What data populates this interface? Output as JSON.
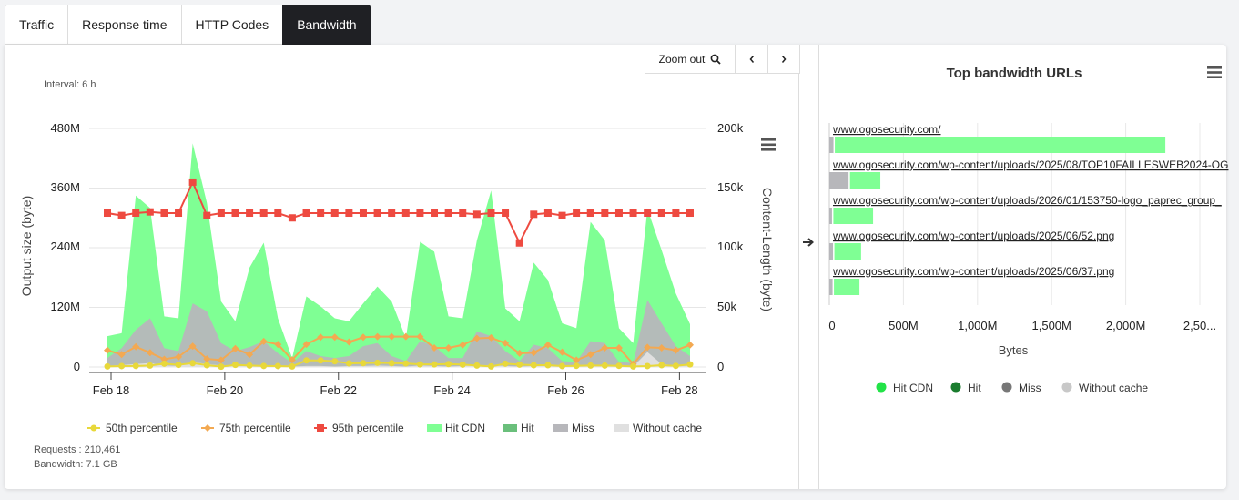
{
  "tabs": [
    {
      "label": "Traffic",
      "active": false
    },
    {
      "label": "Response time",
      "active": false
    },
    {
      "label": "HTTP Codes",
      "active": false
    },
    {
      "label": "Bandwidth",
      "active": true
    }
  ],
  "toolbar": {
    "zoom_out_label": "Zoom out",
    "prev_icon": "chevron-left-icon",
    "next_icon": "chevron-right-icon"
  },
  "left_panel": {
    "interval": "Interval: 6 h",
    "requests": "Requests : 210,461",
    "bandwidth": "Bandwidth: 7.1 GB",
    "menu_icon": "hamburger-menu-icon"
  },
  "right_panel": {
    "title": "Top bandwidth URLs",
    "menu_icon": "hamburger-menu-icon",
    "expand_icon": "arrow-right-icon"
  },
  "colors": {
    "hit_cdn": "#7fff94",
    "hit": "#6abf7b",
    "miss": "#b7b7bb",
    "without_cache": "#e0e0e0",
    "p50": "#e8d83a",
    "p75": "#f3a952",
    "p95": "#ee4a40",
    "legend_hit_cdn": "#22e347",
    "legend_hit": "#1a7c2e",
    "legend_miss": "#777777",
    "legend_without_cache": "#c8c8c8"
  },
  "chart_data": [
    {
      "type": "area",
      "title": "",
      "xlabel": "",
      "ylabel_left": "Output size (byte)",
      "ylabel_right": "Content-Length (byte)",
      "y_left_ticks": [
        "0",
        "120M",
        "240M",
        "360M",
        "480M"
      ],
      "y_left_range": [
        0,
        480
      ],
      "y_right_ticks": [
        "0",
        "50k",
        "100k",
        "150k",
        "200k"
      ],
      "y_right_range": [
        0,
        200
      ],
      "x_ticks": [
        "Feb 18",
        "Feb 20",
        "Feb 22",
        "Feb 24",
        "Feb 26",
        "Feb 28"
      ],
      "x_tick_positions": [
        0,
        8,
        16,
        24,
        32,
        40
      ],
      "legend": [
        "50th percentile",
        "75th percentile",
        "95th percentile",
        "Hit CDN",
        "Hit",
        "Miss",
        "Without cache"
      ],
      "legend_position": "bottom",
      "grid": true,
      "series": [
        {
          "name": "Hit CDN",
          "axis": "left",
          "values": [
            62,
            68,
            345,
            320,
            102,
            98,
            450,
            330,
            132,
            92,
            200,
            250,
            98,
            18,
            142,
            122,
            98,
            92,
            128,
            162,
            132,
            58,
            252,
            232,
            102,
            98,
            255,
            355,
            118,
            92,
            210,
            175,
            88,
            78,
            292,
            255,
            78,
            48,
            318,
            235,
            148,
            86
          ]
        },
        {
          "name": "Hit",
          "axis": "left",
          "values": [
            0,
            0,
            0,
            0,
            0,
            0,
            0,
            0,
            0,
            0,
            0,
            0,
            0,
            0,
            0,
            0,
            0,
            0,
            0,
            0,
            0,
            0,
            0,
            0,
            0,
            0,
            0,
            0,
            0,
            0,
            0,
            0,
            0,
            0,
            0,
            0,
            0,
            0,
            0,
            0,
            0,
            0
          ]
        },
        {
          "name": "Miss",
          "axis": "left",
          "values": [
            18,
            38,
            75,
            98,
            38,
            32,
            128,
            112,
            48,
            32,
            40,
            52,
            28,
            8,
            32,
            22,
            18,
            22,
            42,
            48,
            22,
            12,
            52,
            42,
            18,
            18,
            72,
            62,
            32,
            12,
            45,
            38,
            12,
            10,
            52,
            48,
            10,
            8,
            135,
            88,
            42,
            22
          ]
        },
        {
          "name": "Without cache",
          "axis": "left",
          "values": [
            2,
            4,
            6,
            8,
            3,
            2,
            10,
            6,
            3,
            2,
            2,
            3,
            2,
            1,
            2,
            2,
            1,
            2,
            2,
            3,
            2,
            1,
            3,
            2,
            1,
            2,
            4,
            3,
            2,
            1,
            2,
            2,
            1,
            1,
            2,
            2,
            1,
            1,
            30,
            6,
            3,
            2
          ]
        },
        {
          "name": "50th percentile",
          "axis": "right",
          "values": [
            0.5,
            0.8,
            0.9,
            1.2,
            2.8,
            1.8,
            3.2,
            1.5,
            0.3,
            1.8,
            1.2,
            0.9,
            0.8,
            0.5,
            5.5,
            5.5,
            4.8,
            3.1,
            3.2,
            3.5,
            3.2,
            3.0,
            2.2,
            2.2,
            2.5,
            2.0,
            1.2,
            0.5,
            2.8,
            2.0,
            1.5,
            1.5,
            0.8,
            1.0,
            1.2,
            1.2,
            1.0,
            0.5,
            0.8,
            1.5,
            1.0,
            2.2
          ]
        },
        {
          "name": "75th percentile",
          "axis": "right",
          "values": [
            14,
            10.5,
            17,
            12,
            6.5,
            8.5,
            17.5,
            6.8,
            5.8,
            15.5,
            10.5,
            21.5,
            19,
            6,
            19,
            25,
            25,
            21,
            25,
            25.5,
            25.5,
            25.5,
            25.5,
            16,
            16,
            18.5,
            24,
            24.5,
            20,
            11.5,
            12,
            18.5,
            12.5,
            5.8,
            10.5,
            16,
            16,
            2.5,
            16.5,
            16,
            14,
            18.5
          ]
        },
        {
          "name": "95th percentile",
          "axis": "right",
          "values": [
            129,
            127,
            129,
            130,
            129,
            129,
            155,
            127,
            129,
            129,
            129,
            129,
            129,
            125,
            129,
            129,
            129,
            129,
            129,
            129,
            129,
            129,
            129,
            129,
            129,
            129,
            128,
            129,
            129,
            104,
            128,
            129,
            127,
            129,
            129,
            129,
            129,
            129,
            129,
            129,
            129,
            129
          ]
        }
      ]
    },
    {
      "type": "bar",
      "title": "Top bandwidth URLs",
      "xlabel": "Bytes",
      "ylabel": "",
      "orientation": "horizontal",
      "stacked": true,
      "x_ticks": [
        "0",
        "500M",
        "1,000M",
        "1,500M",
        "2,000M",
        "2,50..."
      ],
      "xlim": [
        0,
        2500
      ],
      "categories": [
        "www.ogosecurity.com/",
        "www.ogosecurity.com/wp-content/uploads/2025/08/TOP10FAILLESWEB2024-OG",
        "www.ogosecurity.com/wp-content/uploads/2026/01/153750-logo_paprec_group_",
        "www.ogosecurity.com/wp-content/uploads/2025/06/52.png",
        "www.ogosecurity.com/wp-content/uploads/2025/06/37.png"
      ],
      "series": [
        {
          "name": "Hit CDN",
          "values": [
            2230,
            205,
            268,
            180,
            172
          ]
        },
        {
          "name": "Hit",
          "values": [
            0,
            0,
            0,
            0,
            0
          ]
        },
        {
          "name": "Miss",
          "values": [
            28,
            130,
            18,
            25,
            22
          ]
        },
        {
          "name": "Without cache",
          "values": [
            0,
            0,
            0,
            0,
            0
          ]
        }
      ],
      "legend": [
        "Hit CDN",
        "Hit",
        "Miss",
        "Without cache"
      ],
      "legend_position": "bottom"
    }
  ]
}
